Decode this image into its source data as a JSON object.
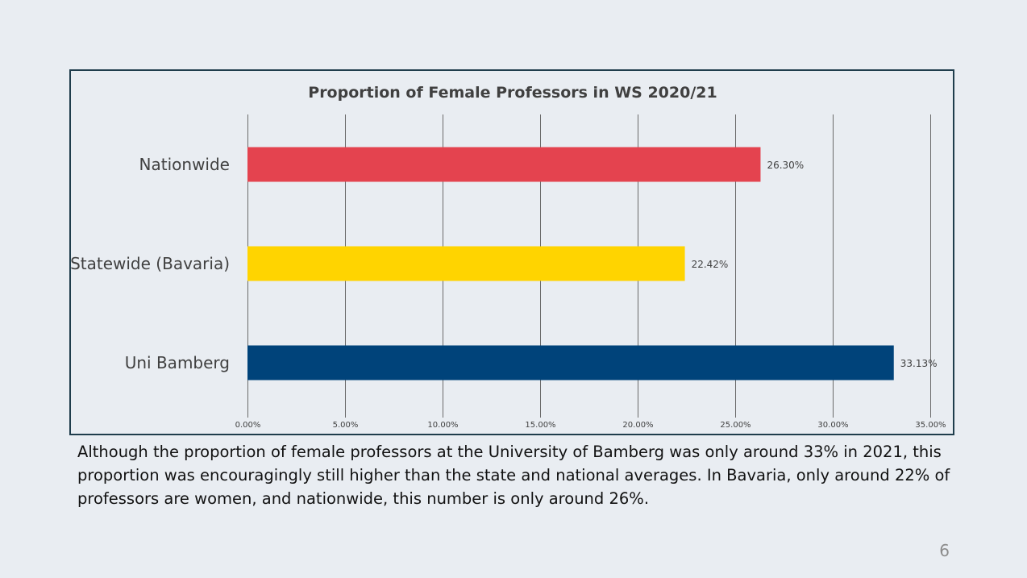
{
  "slide": {
    "caption": "Although the proportion of female professors at the University of Bamberg was only around 33% in 2021, this proportion was encouragingly still higher than the state and national averages. In Bavaria, only around 22% of professors are women, and nationwide, this number is only around 26%.",
    "page_number": "6"
  },
  "chart_data": {
    "type": "bar",
    "orientation": "horizontal",
    "title": "Proportion of Female Professors in WS 2020/21",
    "categories": [
      "Nationwide",
      "Statewide (Bavaria)",
      "Uni Bamberg"
    ],
    "values": [
      26.3,
      22.42,
      33.13
    ],
    "data_labels": [
      "26.30%",
      "22.42%",
      "33.13%"
    ],
    "colors": [
      "#e4434f",
      "#ffd400",
      "#00437a"
    ],
    "xlim": [
      0,
      35
    ],
    "x_ticks": [
      0,
      5,
      10,
      15,
      20,
      25,
      30,
      35
    ],
    "x_tick_labels": [
      "0.00%",
      "5.00%",
      "10.00%",
      "15.00%",
      "20.00%",
      "25.00%",
      "30.00%",
      "35.00%"
    ],
    "xlabel": "",
    "ylabel": "",
    "grid": true,
    "legend": false
  }
}
